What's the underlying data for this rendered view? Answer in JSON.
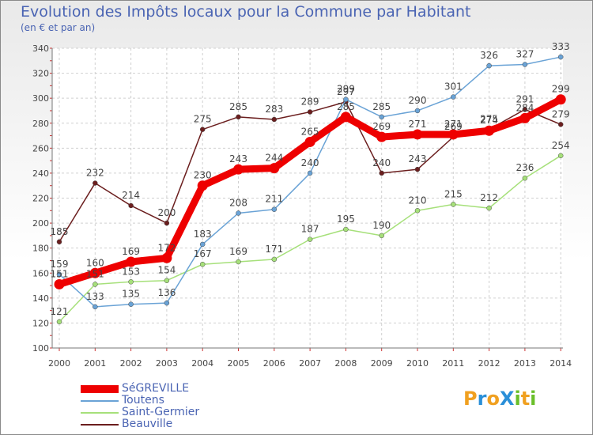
{
  "title": "Evolution des Impôts locaux pour la Commune par Habitant",
  "subtitle": "(en € et par an)",
  "logo": {
    "text": "ProXiti",
    "letters": [
      "P",
      "r",
      "o",
      "X",
      "i",
      "t",
      "i"
    ],
    "colors": [
      "#f0a020",
      "#2a8fd8",
      "#f0a020",
      "#2a8fd8",
      "#6abf2a",
      "#f0a020",
      "#6abf2a"
    ]
  },
  "chart_data": {
    "type": "line",
    "categories": [
      "2000",
      "2001",
      "2002",
      "2003",
      "2004",
      "2005",
      "2006",
      "2007",
      "2008",
      "2009",
      "2010",
      "2011",
      "2012",
      "2013",
      "2014"
    ],
    "ylim": [
      100,
      340
    ],
    "yticks": [
      100,
      120,
      140,
      160,
      180,
      200,
      220,
      240,
      260,
      280,
      300,
      320,
      340
    ],
    "grid": true,
    "legend_position": "bottom-left",
    "series": [
      {
        "name": "Beauville",
        "color": "#6b1e1e",
        "values": [
          185,
          232,
          214,
          200,
          275,
          285,
          283,
          289,
          297,
          240,
          243,
          269,
          275,
          291,
          279
        ]
      },
      {
        "name": "Saint-Germier",
        "color": "#a6e07a",
        "values": [
          121,
          151,
          153,
          154,
          167,
          169,
          171,
          187,
          195,
          190,
          210,
          215,
          212,
          236,
          254
        ]
      },
      {
        "name": "Toutens",
        "color": "#6aa3d6",
        "values": [
          159,
          133,
          135,
          136,
          183,
          208,
          211,
          240,
          299,
          285,
          290,
          301,
          326,
          327,
          333
        ]
      },
      {
        "name": "SéGREVILLE",
        "color": "#ee0000",
        "values": [
          151,
          160,
          169,
          172,
          230,
          243,
          244,
          265,
          285,
          269,
          271,
          271,
          274,
          284,
          299
        ]
      }
    ],
    "legend_order": [
      "SéGREVILLE",
      "Toutens",
      "Saint-Germier",
      "Beauville"
    ]
  }
}
